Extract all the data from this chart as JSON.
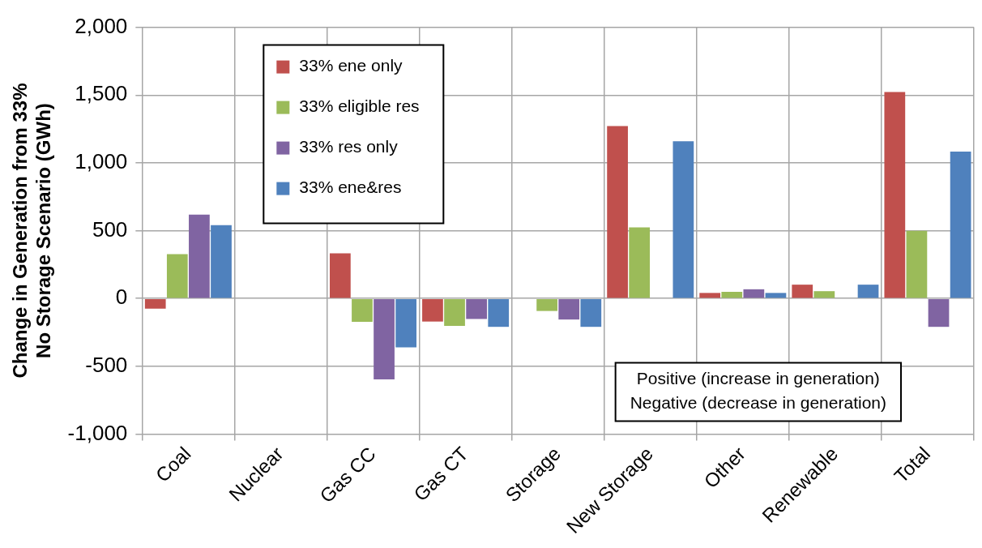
{
  "chart_data": {
    "type": "bar",
    "ylabel": "Change in Generation from 33%\nNo Storage Scenario (GWh)",
    "categories": [
      "Coal",
      "Nuclear",
      "Gas CC",
      "Gas CT",
      "Storage",
      "New Storage",
      "Other",
      "Renewable",
      "Total"
    ],
    "series": [
      {
        "name": "33% ene only",
        "color": "#c0504d",
        "values": [
          -75,
          0,
          333,
          -170,
          0,
          1272,
          41,
          102,
          1523
        ]
      },
      {
        "name": "33% eligible res",
        "color": "#9bbb59",
        "values": [
          327,
          0,
          -172,
          -202,
          -92,
          525,
          49,
          54,
          499
        ]
      },
      {
        "name": "33% res only",
        "color": "#8064a2",
        "values": [
          618,
          0,
          -596,
          -151,
          -155,
          0,
          68,
          0,
          -209
        ]
      },
      {
        "name": "33% ene&res",
        "color": "#4f81bd",
        "values": [
          540,
          0,
          -360,
          -209,
          -209,
          1160,
          41,
          102,
          1083
        ]
      }
    ],
    "ylim": [
      -1000,
      2000
    ],
    "yticks": [
      {
        "value": -1000,
        "label": "-1,000"
      },
      -500,
      0,
      500,
      {
        "value": 1000,
        "label": "1,000"
      },
      {
        "value": 1500,
        "label": "1,500"
      },
      {
        "value": 2000,
        "label": "2,000"
      }
    ],
    "grid": true,
    "legend": "top left",
    "annotations": [
      "Positive (increase in generation)",
      "Negative (decrease in generation)"
    ]
  }
}
